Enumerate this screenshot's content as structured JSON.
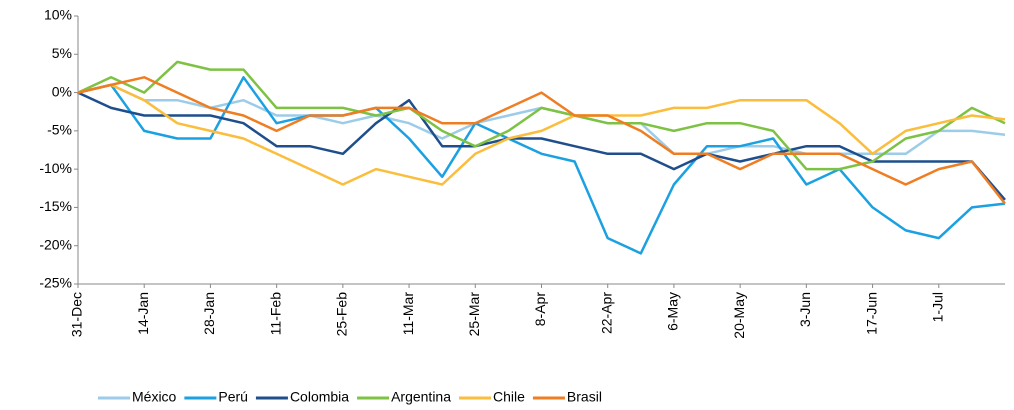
{
  "chart_data": {
    "type": "line",
    "categories": [
      "31-Dec",
      null,
      "14-Jan",
      null,
      "28-Jan",
      null,
      "11-Feb",
      null,
      "25-Feb",
      null,
      "11-Mar",
      null,
      "25-Mar",
      null,
      "8-Apr",
      null,
      "22-Apr",
      null,
      "6-May",
      null,
      "20-May",
      null,
      "3-Jun",
      null,
      "17-Jun",
      null,
      "1-Jul",
      null,
      null
    ],
    "series": [
      {
        "name": "México",
        "color": "#9dcce8",
        "values": [
          0,
          1,
          -1,
          -1,
          -2,
          -1,
          -3,
          -3,
          -4,
          -3,
          -4,
          -6,
          -4,
          -3,
          -2,
          -3,
          -4,
          -4,
          -8,
          -8,
          -7,
          -7,
          -8,
          -8,
          -8,
          -8,
          -5,
          -5,
          -5.5
        ]
      },
      {
        "name": "Perú",
        "color": "#1ba1e2",
        "values": [
          0,
          1,
          -5,
          -6,
          -6,
          2,
          -4,
          -3,
          -3,
          -2,
          -6,
          -11,
          -4,
          -6,
          -8,
          -9,
          -19,
          -21,
          -12,
          -7,
          -7,
          -6,
          -12,
          -10,
          -15,
          -18,
          -19,
          -15,
          -14.5
        ]
      },
      {
        "name": "Colombia",
        "color": "#1f4e8c",
        "values": [
          0,
          -2,
          -3,
          -3,
          -3,
          -4,
          -7,
          -7,
          -8,
          -4,
          -1,
          -7,
          -7,
          -6,
          -6,
          -7,
          -8,
          -8,
          -10,
          -8,
          -9,
          -8,
          -7,
          -7,
          -9,
          -9,
          -9,
          -9,
          -14
        ]
      },
      {
        "name": "Argentina",
        "color": "#7dc242",
        "values": [
          0,
          2,
          0,
          4,
          3,
          3,
          -2,
          -2,
          -2,
          -3,
          -2,
          -5,
          -7,
          -5,
          -2,
          -3,
          -4,
          -4,
          -5,
          -4,
          -4,
          -5,
          -10,
          -10,
          -9,
          -6,
          -5,
          -2,
          -4
        ]
      },
      {
        "name": "Chile",
        "color": "#fbbd3c",
        "values": [
          0,
          1,
          -1,
          -4,
          -5,
          -6,
          -8,
          -10,
          -12,
          -10,
          -11,
          -12,
          -8,
          -6,
          -5,
          -3,
          -3,
          -3,
          -2,
          -2,
          -1,
          -1,
          -1,
          -4,
          -8,
          -5,
          -4,
          -3,
          -3.5
        ]
      },
      {
        "name": "Brasil",
        "color": "#ef7d22",
        "values": [
          0,
          1,
          2,
          0,
          -2,
          -3,
          -5,
          -3,
          -3,
          -2,
          -2,
          -4,
          -4,
          -2,
          0,
          -3,
          -3,
          -5,
          -8,
          -8,
          -10,
          -8,
          -8,
          -8,
          -10,
          -12,
          -10,
          -9,
          -14.5
        ]
      }
    ],
    "ylim": [
      -25,
      10
    ],
    "yticks": [
      {
        "value": -25,
        "label": "-25%"
      },
      {
        "value": -20,
        "label": "-20%"
      },
      {
        "value": -15,
        "label": "-15%"
      },
      {
        "value": -10,
        "label": "-10%"
      },
      {
        "value": -5,
        "label": "-5%"
      },
      {
        "value": 0,
        "label": "0%"
      },
      {
        "value": 5,
        "label": "5%"
      },
      {
        "value": 10,
        "label": "10%"
      }
    ],
    "grid": false,
    "legend": "bottom"
  }
}
